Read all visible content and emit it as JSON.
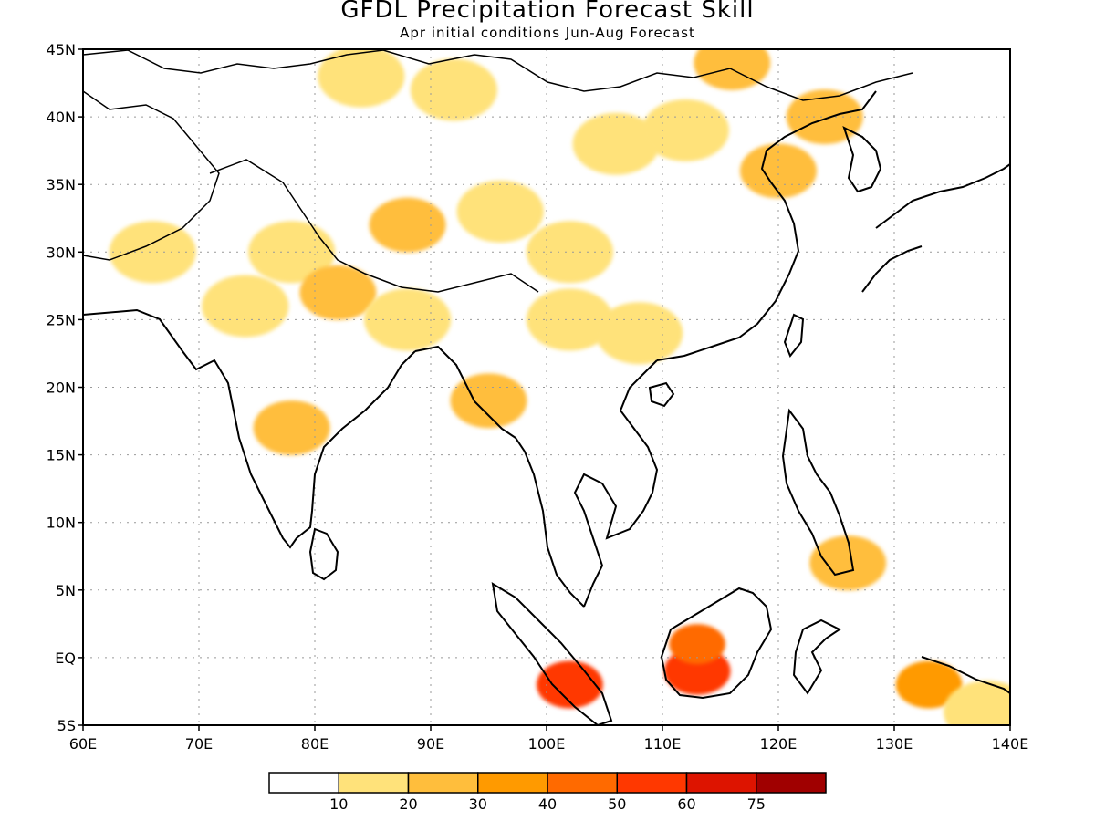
{
  "title": "GFDL Precipitation Forecast Skill",
  "subtitle": "Apr initial conditions  Jun-Aug Forecast",
  "map": {
    "lon_range": [
      60,
      140
    ],
    "lat_range": [
      -5,
      45
    ],
    "x_ticks": [
      "60E",
      "70E",
      "80E",
      "90E",
      "100E",
      "110E",
      "120E",
      "130E",
      "140E"
    ],
    "y_ticks": [
      "5S",
      "EQ",
      "5N",
      "10N",
      "15N",
      "20N",
      "25N",
      "30N",
      "35N",
      "40N",
      "45N"
    ],
    "gridlines": "dotted"
  },
  "colorbar": {
    "labels": [
      "10",
      "20",
      "30",
      "40",
      "50",
      "60",
      "75"
    ],
    "colors": [
      "#ffffff",
      "#ffe27a",
      "#ffbe3c",
      "#ff9a00",
      "#ff6a00",
      "#ff3800",
      "#dd1400",
      "#a00000"
    ]
  },
  "skill_regions": [
    {
      "lon": 84,
      "lat": 43,
      "level": 1
    },
    {
      "lon": 92,
      "lat": 42,
      "level": 1
    },
    {
      "lon": 116,
      "lat": 44,
      "level": 2
    },
    {
      "lon": 106,
      "lat": 38,
      "level": 1
    },
    {
      "lon": 112,
      "lat": 39,
      "level": 1
    },
    {
      "lon": 124,
      "lat": 40,
      "level": 2
    },
    {
      "lon": 120,
      "lat": 36,
      "level": 2
    },
    {
      "lon": 96,
      "lat": 33,
      "level": 1
    },
    {
      "lon": 88,
      "lat": 32,
      "level": 2
    },
    {
      "lon": 102,
      "lat": 30,
      "level": 1
    },
    {
      "lon": 78,
      "lat": 30,
      "level": 1
    },
    {
      "lon": 66,
      "lat": 30,
      "level": 1
    },
    {
      "lon": 82,
      "lat": 27,
      "level": 2
    },
    {
      "lon": 88,
      "lat": 25,
      "level": 1
    },
    {
      "lon": 102,
      "lat": 25,
      "level": 1
    },
    {
      "lon": 108,
      "lat": 24,
      "level": 1
    },
    {
      "lon": 74,
      "lat": 26,
      "level": 1
    },
    {
      "lon": 95,
      "lat": 19,
      "level": 2
    },
    {
      "lon": 78,
      "lat": 17,
      "level": 2
    },
    {
      "lon": 102,
      "lat": -2,
      "level": 5
    },
    {
      "lon": 113,
      "lat": -1,
      "level": 5
    },
    {
      "lon": 113,
      "lat": 1,
      "level": 4
    },
    {
      "lon": 133,
      "lat": -2,
      "level": 3
    },
    {
      "lon": 126,
      "lat": 7,
      "level": 2
    },
    {
      "lon": 138,
      "lat": -4,
      "level": 1
    }
  ]
}
